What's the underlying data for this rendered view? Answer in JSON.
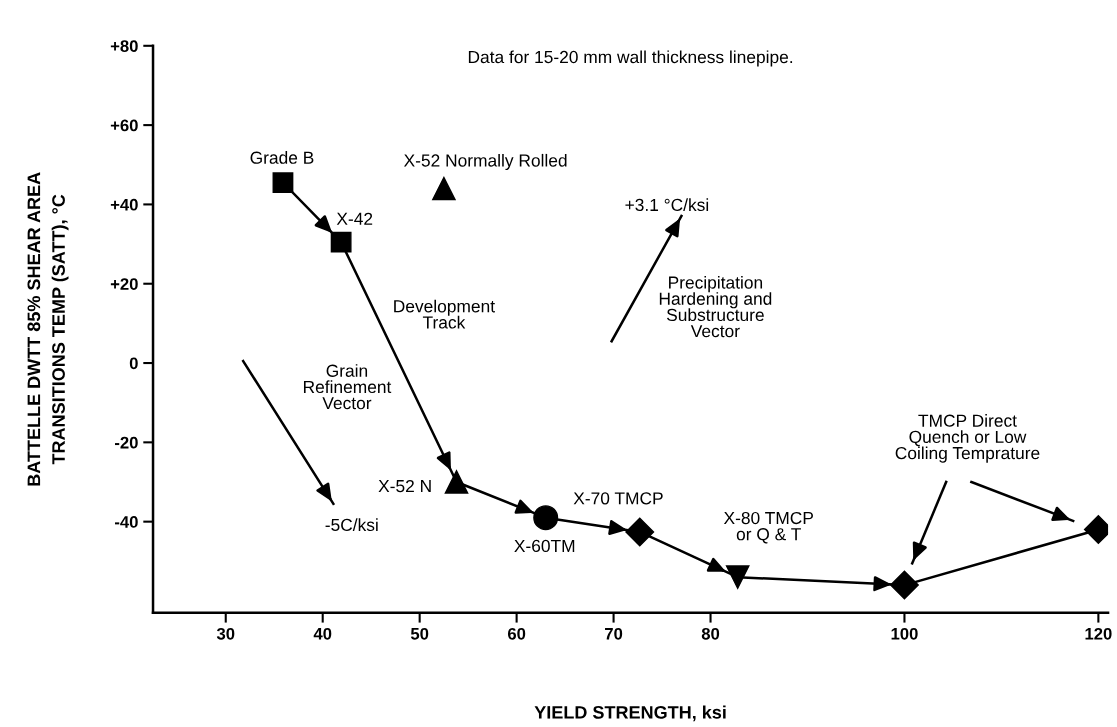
{
  "chart_data": {
    "type": "scatter",
    "title": "Data for 15-20 mm wall thickness linepipe.",
    "xlabel": "YIELD STRENGTH, ksi",
    "ylabel": "BATTELLE DWTT 85% SHEAR AREA\nTRANSITIONS TEMP (SATT), °C",
    "xlim": [
      22.5,
      121
    ],
    "xticks": [
      30,
      40,
      50,
      60,
      70,
      80,
      100,
      120
    ],
    "ylim": [
      -63,
      80
    ],
    "yticks": [
      {
        "value": 80,
        "label": "+80"
      },
      {
        "value": 60,
        "label": "+60"
      },
      {
        "value": 40,
        "label": "+40"
      },
      {
        "value": 20,
        "label": "+20"
      },
      0,
      -20,
      -40
    ],
    "grid": false,
    "series": [
      {
        "type": "line",
        "color": "#000000",
        "x": [
          35.9,
          41.9,
          53.8,
          63,
          72.7,
          82.8,
          100,
          120
        ],
        "values": [
          45.5,
          30.5,
          -30,
          -39,
          -42.6,
          -54,
          -56,
          -42
        ]
      },
      {
        "type": "line",
        "color": "#000000",
        "x": [
          31.8,
          41.1
        ],
        "values": [
          0.5,
          -35.5
        ]
      },
      {
        "type": "line",
        "color": "#000000",
        "x": [
          69.8,
          77.0
        ],
        "values": [
          5.5,
          37.1
        ]
      },
      {
        "type": "line",
        "color": "#000000",
        "x": [
          104.3,
          100.8
        ],
        "values": [
          -30,
          -50.5
        ]
      },
      {
        "type": "line",
        "color": "#000000",
        "x": [
          106.9,
          117.4
        ],
        "values": [
          -30,
          -39.8
        ]
      },
      {
        "marker": "square",
        "color": "#000000",
        "x": [
          35.9,
          41.9
        ],
        "values": [
          45.5,
          30.5
        ]
      },
      {
        "marker": "triangle",
        "color": "#000000",
        "x": [
          52.5,
          53.8
        ],
        "values": [
          44,
          -30
        ]
      },
      {
        "marker": "circle",
        "color": "#000000",
        "x": [
          63
        ],
        "values": [
          -39
        ]
      },
      {
        "marker": "diamond",
        "color": "#000000",
        "x": [
          72.7,
          100,
          120
        ],
        "values": [
          -42.6,
          -56,
          -42
        ]
      },
      {
        "marker": "triangle_down",
        "color": "#000000",
        "x": [
          82.8
        ],
        "values": [
          -54
        ]
      }
    ],
    "annotations": [
      "Grade B",
      "X-42",
      "X-52 Normally Rolled",
      "Development\nTrack",
      "Grain\nRefinement\nVector",
      "-5C/ksi",
      "+3.1 °C/ksi",
      "Precipitation\nHardening and\nSubstructure\nVector",
      "X-52 N",
      "X-60TM",
      "X-70 TMCP",
      "X-80 TMCP\nor Q & T",
      "TMCP Direct\nQuench or Low\nCoiling Temprature"
    ]
  }
}
